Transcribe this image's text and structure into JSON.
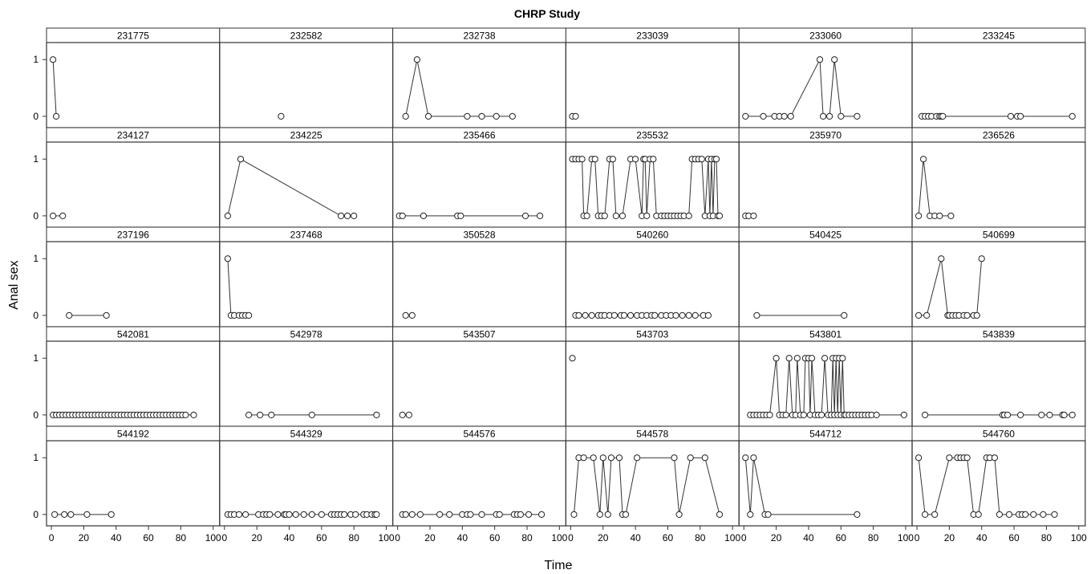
{
  "chart_data": {
    "type": "line",
    "title": "CHRP Study",
    "xlabel": "Time",
    "ylabel": "Anal sex",
    "xlim": [
      -3,
      104
    ],
    "ylim": [
      -0.2,
      1.3
    ],
    "x_ticks": [
      0,
      20,
      40,
      60,
      80,
      100
    ],
    "y_ticks": [
      0,
      1
    ],
    "grid": false,
    "layout": "5 rows x 6 columns trellis",
    "panels": [
      {
        "id": "231775",
        "x": [
          1,
          3
        ],
        "y": [
          1,
          0
        ]
      },
      {
        "id": "232582",
        "x": [
          35
        ],
        "y": [
          0
        ]
      },
      {
        "id": "232738",
        "x": [
          5,
          12,
          19,
          43,
          52,
          61,
          71
        ],
        "y": [
          0,
          1,
          0,
          0,
          0,
          0,
          0
        ]
      },
      {
        "id": "233039",
        "x": [
          1,
          3
        ],
        "y": [
          0,
          0
        ]
      },
      {
        "id": "233060",
        "x": [
          1,
          12,
          19,
          22,
          25,
          29,
          47,
          49,
          53,
          56,
          60,
          70
        ],
        "y": [
          0,
          0,
          0,
          0,
          0,
          0,
          1,
          0,
          0,
          1,
          0,
          0
        ]
      },
      {
        "id": "233245",
        "x": [
          3,
          5,
          7,
          9,
          12,
          14,
          15,
          16,
          58,
          62,
          64,
          96
        ],
        "y": [
          0,
          0,
          0,
          0,
          0,
          0,
          0,
          0,
          0,
          0,
          0,
          0
        ]
      },
      {
        "id": "234127",
        "x": [
          1,
          7
        ],
        "y": [
          0,
          0
        ]
      },
      {
        "id": "234225",
        "x": [
          2,
          10,
          72,
          76,
          80
        ],
        "y": [
          0,
          1,
          0,
          0,
          0
        ]
      },
      {
        "id": "235466",
        "x": [
          1,
          3,
          16,
          37,
          39,
          79,
          88
        ],
        "y": [
          0,
          0,
          0,
          0,
          0,
          0,
          0
        ]
      },
      {
        "id": "235532",
        "x": [
          1,
          3,
          5,
          7,
          8,
          10,
          13,
          15,
          17,
          19,
          21,
          24,
          26,
          28,
          32,
          37,
          40,
          44,
          45,
          46,
          47,
          49,
          51,
          53,
          56,
          58,
          60,
          62,
          64,
          66,
          68,
          70,
          73,
          75,
          77,
          79,
          81,
          83,
          85,
          86,
          87,
          88,
          89,
          90,
          91,
          92
        ],
        "y": [
          1,
          1,
          1,
          1,
          0,
          0,
          1,
          1,
          0,
          0,
          0,
          1,
          1,
          0,
          0,
          1,
          1,
          0,
          1,
          1,
          0,
          1,
          1,
          0,
          0,
          0,
          0,
          0,
          0,
          0,
          0,
          0,
          0,
          1,
          1,
          1,
          1,
          0,
          1,
          0,
          1,
          0,
          1,
          1,
          0,
          0
        ]
      },
      {
        "id": "235970",
        "x": [
          1,
          3,
          6
        ],
        "y": [
          0,
          0,
          0
        ]
      },
      {
        "id": "236526",
        "x": [
          1,
          4,
          8,
          11,
          14,
          21
        ],
        "y": [
          0,
          1,
          0,
          0,
          0,
          0
        ]
      },
      {
        "id": "237196",
        "x": [
          11,
          34
        ],
        "y": [
          0,
          0
        ]
      },
      {
        "id": "237468",
        "x": [
          2,
          4,
          6,
          9,
          11,
          13,
          15
        ],
        "y": [
          1,
          0,
          0,
          0,
          0,
          0,
          0
        ]
      },
      {
        "id": "350528",
        "x": [
          5,
          9
        ],
        "y": [
          0,
          0
        ]
      },
      {
        "id": "540260",
        "x": [
          3,
          5,
          9,
          13,
          17,
          19,
          21,
          24,
          27,
          31,
          33,
          37,
          41,
          44,
          47,
          50,
          52,
          56,
          59,
          62,
          65,
          69,
          73,
          77,
          82,
          85
        ],
        "y": [
          0,
          0,
          0,
          0,
          0,
          0,
          0,
          0,
          0,
          0,
          0,
          0,
          0,
          0,
          0,
          0,
          0,
          0,
          0,
          0,
          0,
          0,
          0,
          0,
          0,
          0
        ]
      },
      {
        "id": "540425",
        "x": [
          8,
          62
        ],
        "y": [
          0,
          0
        ]
      },
      {
        "id": "540699",
        "x": [
          1,
          6,
          15,
          19,
          20,
          22,
          24,
          26,
          29,
          31,
          35,
          37,
          40
        ],
        "y": [
          0,
          0,
          1,
          0,
          0,
          0,
          0,
          0,
          0,
          0,
          0,
          0,
          1
        ]
      },
      {
        "id": "542081",
        "x": [
          1,
          3,
          5,
          7,
          9,
          11,
          13,
          15,
          17,
          19,
          21,
          23,
          25,
          27,
          29,
          31,
          33,
          35,
          37,
          39,
          41,
          43,
          45,
          47,
          49,
          51,
          53,
          55,
          57,
          59,
          61,
          63,
          65,
          67,
          69,
          71,
          73,
          75,
          77,
          79,
          81,
          83,
          88
        ],
        "y": [
          0,
          0,
          0,
          0,
          0,
          0,
          0,
          0,
          0,
          0,
          0,
          0,
          0,
          0,
          0,
          0,
          0,
          0,
          0,
          0,
          0,
          0,
          0,
          0,
          0,
          0,
          0,
          0,
          0,
          0,
          0,
          0,
          0,
          0,
          0,
          0,
          0,
          0,
          0,
          0,
          0,
          0,
          0
        ]
      },
      {
        "id": "542978",
        "x": [
          15,
          22,
          29,
          54,
          94
        ],
        "y": [
          0,
          0,
          0,
          0,
          0
        ]
      },
      {
        "id": "543507",
        "x": [
          3,
          7
        ],
        "y": [
          0,
          0
        ]
      },
      {
        "id": "543703",
        "x": [
          1
        ],
        "y": [
          1
        ]
      },
      {
        "id": "543801",
        "x": [
          4,
          6,
          8,
          10,
          12,
          14,
          16,
          20,
          22,
          24,
          26,
          28,
          30,
          32,
          33,
          35,
          37,
          38,
          40,
          41,
          42,
          44,
          46,
          48,
          50,
          52,
          54,
          55,
          56,
          57,
          58,
          59,
          60,
          61,
          62,
          63,
          65,
          67,
          69,
          71,
          73,
          75,
          77,
          79,
          82,
          99
        ],
        "y": [
          0,
          0,
          0,
          0,
          0,
          0,
          0,
          1,
          0,
          0,
          0,
          1,
          0,
          0,
          1,
          0,
          0,
          1,
          1,
          0,
          1,
          0,
          0,
          0,
          1,
          0,
          0,
          1,
          0,
          1,
          0,
          1,
          0,
          1,
          0,
          0,
          0,
          0,
          0,
          0,
          0,
          0,
          0,
          0,
          0,
          0
        ]
      },
      {
        "id": "543839",
        "x": [
          5,
          53,
          54,
          56,
          64,
          77,
          82,
          90,
          91,
          96
        ],
        "y": [
          0,
          0,
          0,
          0,
          0,
          0,
          0,
          0,
          0,
          0
        ]
      },
      {
        "id": "544192",
        "x": [
          2,
          8,
          12,
          22,
          37
        ],
        "y": [
          0,
          0,
          0,
          0,
          0
        ]
      },
      {
        "id": "544329",
        "x": [
          2,
          4,
          6,
          9,
          13,
          21,
          24,
          26,
          28,
          33,
          37,
          38,
          40,
          44,
          49,
          54,
          60,
          66,
          68,
          70,
          72,
          74,
          78,
          81,
          86,
          88,
          91,
          93,
          94
        ],
        "y": [
          0,
          0,
          0,
          0,
          0,
          0,
          0,
          0,
          0,
          0,
          0,
          0,
          0,
          0,
          0,
          0,
          0,
          0,
          0,
          0,
          0,
          0,
          0,
          0,
          0,
          0,
          0,
          0,
          0
        ]
      },
      {
        "id": "544576",
        "x": [
          3,
          5,
          9,
          14,
          26,
          32,
          40,
          43,
          45,
          52,
          61,
          63,
          72,
          74,
          76,
          81,
          89
        ],
        "y": [
          0,
          0,
          0,
          0,
          0,
          0,
          0,
          0,
          0,
          0,
          0,
          0,
          0,
          0,
          0,
          0,
          0
        ]
      },
      {
        "id": "544578",
        "x": [
          2,
          5,
          8,
          14,
          18,
          20,
          23,
          25,
          30,
          32,
          34,
          41,
          64,
          67,
          74,
          83,
          92
        ],
        "y": [
          0,
          1,
          1,
          1,
          0,
          1,
          0,
          1,
          1,
          0,
          0,
          1,
          1,
          0,
          1,
          1,
          0
        ]
      },
      {
        "id": "544712",
        "x": [
          1,
          4,
          6,
          13,
          15,
          70
        ],
        "y": [
          1,
          0,
          1,
          0,
          0,
          0
        ]
      },
      {
        "id": "544760",
        "x": [
          1,
          5,
          11,
          20,
          25,
          27,
          29,
          31,
          35,
          38,
          43,
          45,
          48,
          51,
          57,
          63,
          65,
          67,
          72,
          78,
          85
        ],
        "y": [
          1,
          0,
          0,
          1,
          1,
          1,
          1,
          1,
          0,
          0,
          1,
          1,
          1,
          0,
          0,
          0,
          0,
          0,
          0,
          0,
          0
        ]
      }
    ]
  }
}
